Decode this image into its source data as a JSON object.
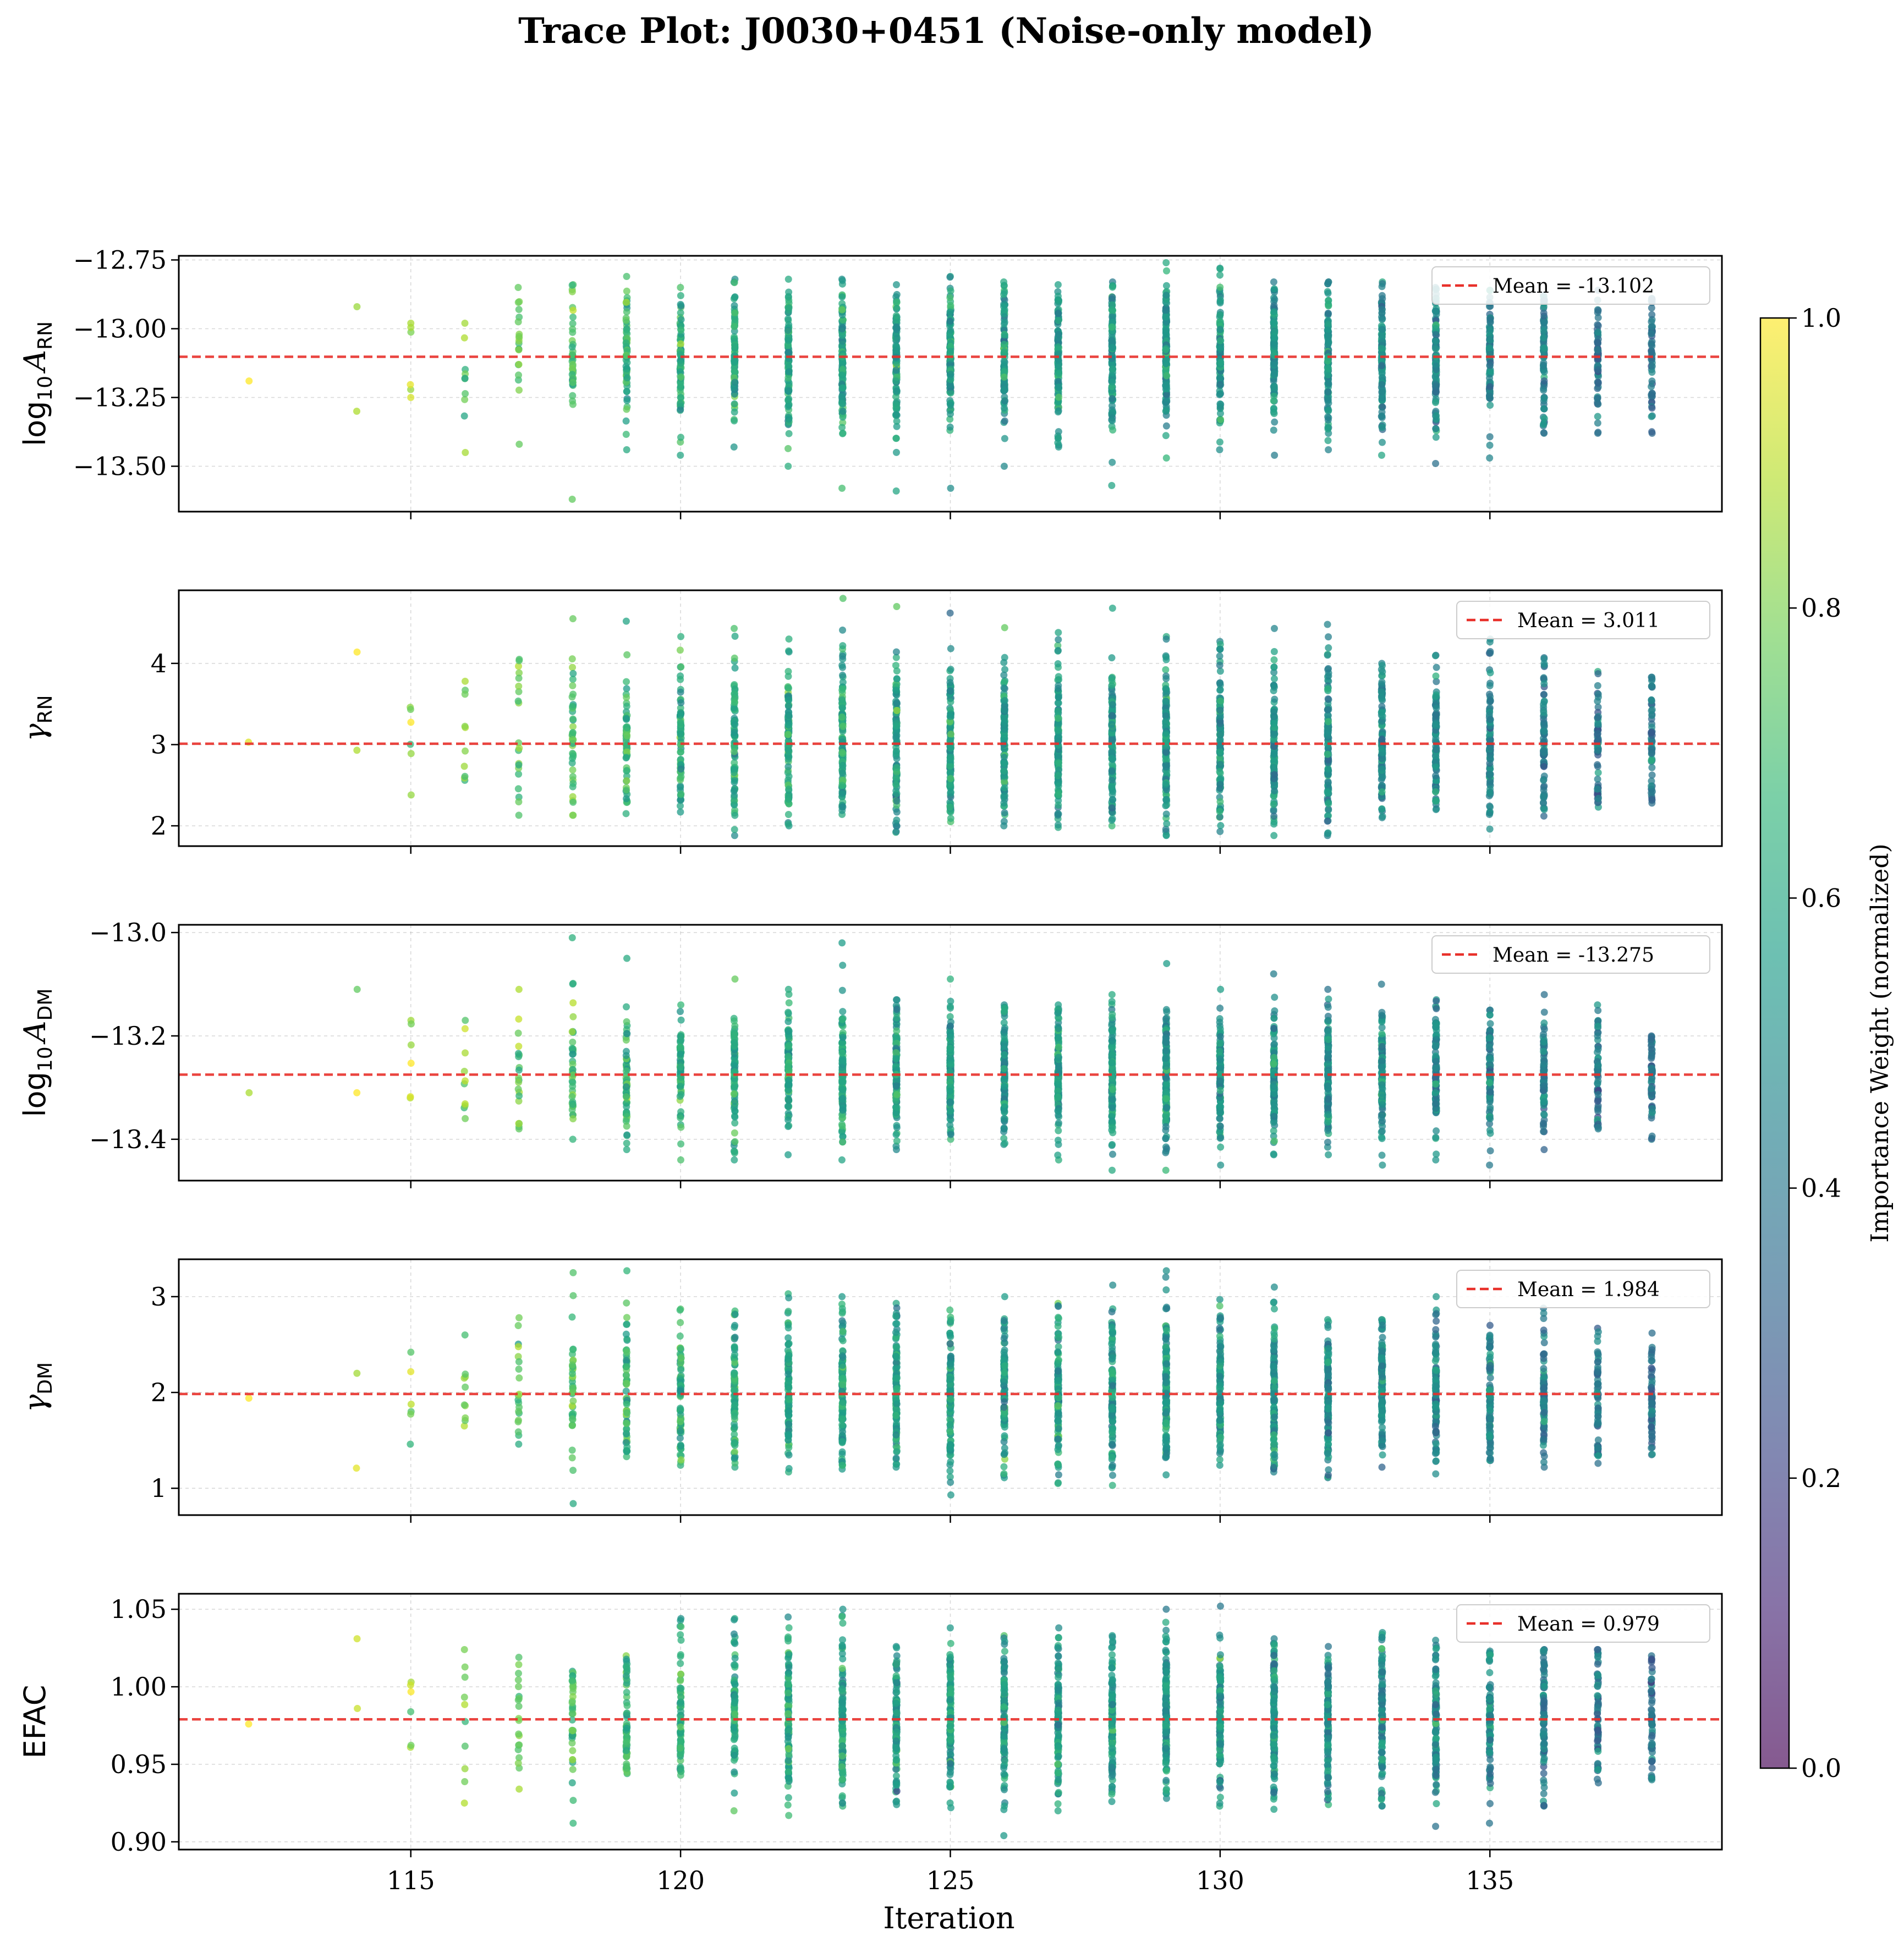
{
  "chart_data": {
    "type": "scatter",
    "title": "Trace Plot: J0030+0451 (Noise-only model)",
    "xlabel": "Iteration",
    "xlim": [
      110.7,
      139.3
    ],
    "xticks": [
      115,
      120,
      125,
      130,
      135
    ],
    "colorbar": {
      "label": "Importance Weight (normalized)",
      "range": [
        0.0,
        1.0
      ],
      "ticks": [
        "0.0",
        "0.2",
        "0.4",
        "0.6",
        "0.8",
        "1.0"
      ],
      "colormap": "viridis",
      "alpha": 0.65
    },
    "iterations": [
      112,
      114,
      115,
      116,
      117,
      118,
      119,
      120,
      121,
      122,
      123,
      124,
      125,
      126,
      127,
      128,
      129,
      130,
      131,
      132,
      133,
      134,
      135,
      136,
      137,
      138
    ],
    "points_per_iteration": [
      1,
      2,
      6,
      10,
      20,
      40,
      60,
      70,
      80,
      100,
      120,
      110,
      120,
      110,
      120,
      115,
      140,
      115,
      120,
      110,
      110,
      100,
      90,
      80,
      60,
      55
    ],
    "mean_weight_per_iteration": [
      0.98,
      0.93,
      0.85,
      0.78,
      0.74,
      0.7,
      0.66,
      0.63,
      0.61,
      0.6,
      0.59,
      0.56,
      0.56,
      0.55,
      0.55,
      0.54,
      0.54,
      0.52,
      0.51,
      0.5,
      0.49,
      0.47,
      0.46,
      0.43,
      0.41,
      0.38
    ],
    "panels": [
      {
        "ylabel_main": "log",
        "ylabel_sub": "10",
        "ylabel_var": "A",
        "ylabel_var_sub": "RN",
        "ylim": [
          -13.665,
          -12.735
        ],
        "yticks": [
          -13.5,
          -13.25,
          -13.0,
          -12.75
        ],
        "ytick_labels": [
          "−13.50",
          "−13.25",
          "−13.00",
          "−12.75"
        ],
        "mean": -13.102,
        "legend": "Mean = -13.102",
        "spread_sd": 0.13,
        "range_per_iteration": [
          [
            -13.19,
            -13.19
          ],
          [
            -13.3,
            -12.92
          ],
          [
            -13.25,
            -12.98
          ],
          [
            -13.45,
            -12.98
          ],
          [
            -13.42,
            -12.85
          ],
          [
            -13.62,
            -12.84
          ],
          [
            -13.44,
            -12.81
          ],
          [
            -13.46,
            -12.85
          ],
          [
            -13.43,
            -12.82
          ],
          [
            -13.5,
            -12.82
          ],
          [
            -13.58,
            -12.82
          ],
          [
            -13.59,
            -12.84
          ],
          [
            -13.58,
            -12.81
          ],
          [
            -13.5,
            -12.83
          ],
          [
            -13.43,
            -12.84
          ],
          [
            -13.57,
            -12.83
          ],
          [
            -13.47,
            -12.76
          ],
          [
            -13.44,
            -12.78
          ],
          [
            -13.46,
            -12.83
          ],
          [
            -13.44,
            -12.83
          ],
          [
            -13.46,
            -12.83
          ],
          [
            -13.49,
            -12.85
          ],
          [
            -13.47,
            -12.86
          ],
          [
            -13.38,
            -12.88
          ],
          [
            -13.38,
            -12.86
          ],
          [
            -13.38,
            -12.89
          ]
        ]
      },
      {
        "ylabel_main": "γ",
        "ylabel_sub": "RN",
        "ylim": [
          1.75,
          4.9
        ],
        "yticks": [
          2,
          3,
          4
        ],
        "ytick_labels": [
          "2",
          "3",
          "4"
        ],
        "mean": 3.011,
        "legend": "Mean = 3.011",
        "spread_sd": 0.5,
        "range_per_iteration": [
          [
            3.03,
            3.03
          ],
          [
            2.93,
            4.14
          ],
          [
            2.38,
            3.46
          ],
          [
            2.56,
            3.78
          ],
          [
            2.13,
            4.05
          ],
          [
            2.13,
            4.55
          ],
          [
            2.15,
            4.52
          ],
          [
            2.17,
            4.33
          ],
          [
            1.88,
            4.43
          ],
          [
            2.0,
            4.3
          ],
          [
            2.14,
            4.8
          ],
          [
            1.92,
            4.7
          ],
          [
            2.05,
            4.62
          ],
          [
            2.0,
            4.44
          ],
          [
            1.98,
            4.38
          ],
          [
            2.0,
            4.68
          ],
          [
            1.88,
            4.33
          ],
          [
            1.93,
            4.27
          ],
          [
            1.88,
            4.43
          ],
          [
            1.88,
            4.48
          ],
          [
            2.1,
            4.0
          ],
          [
            2.2,
            4.1
          ],
          [
            1.96,
            4.3
          ],
          [
            2.12,
            4.07
          ],
          [
            2.23,
            3.9
          ],
          [
            2.28,
            3.83
          ]
        ]
      },
      {
        "ylabel_main": "log",
        "ylabel_sub": "10",
        "ylabel_var": "A",
        "ylabel_var_sub": "DM",
        "ylim": [
          -13.48,
          -12.985
        ],
        "yticks": [
          -13.4,
          -13.2,
          -13.0
        ],
        "ytick_labels": [
          "−13.4",
          "−13.2",
          "−13.0"
        ],
        "mean": -13.275,
        "legend": "Mean = -13.275",
        "spread_sd": 0.06,
        "range_per_iteration": [
          [
            -13.31,
            -13.31
          ],
          [
            -13.31,
            -13.11
          ],
          [
            -13.32,
            -13.17
          ],
          [
            -13.36,
            -13.17
          ],
          [
            -13.38,
            -13.11
          ],
          [
            -13.4,
            -13.01
          ],
          [
            -13.42,
            -13.05
          ],
          [
            -13.44,
            -13.14
          ],
          [
            -13.44,
            -13.09
          ],
          [
            -13.43,
            -13.11
          ],
          [
            -13.44,
            -13.02
          ],
          [
            -13.42,
            -13.13
          ],
          [
            -13.4,
            -13.09
          ],
          [
            -13.41,
            -13.14
          ],
          [
            -13.44,
            -13.14
          ],
          [
            -13.46,
            -13.12
          ],
          [
            -13.46,
            -13.06
          ],
          [
            -13.45,
            -13.11
          ],
          [
            -13.43,
            -13.08
          ],
          [
            -13.43,
            -13.11
          ],
          [
            -13.45,
            -13.1
          ],
          [
            -13.44,
            -13.13
          ],
          [
            -13.45,
            -13.15
          ],
          [
            -13.42,
            -13.12
          ],
          [
            -13.38,
            -13.14
          ],
          [
            -13.4,
            -13.2
          ]
        ]
      },
      {
        "ylabel_main": "γ",
        "ylabel_sub": "DM",
        "ylim": [
          0.72,
          3.39
        ],
        "yticks": [
          1,
          2,
          3
        ],
        "ytick_labels": [
          "1",
          "2",
          "3"
        ],
        "mean": 1.984,
        "legend": "Mean = 1.984",
        "spread_sd": 0.4,
        "range_per_iteration": [
          [
            1.94,
            1.94
          ],
          [
            1.21,
            2.2
          ],
          [
            1.46,
            2.42
          ],
          [
            1.65,
            2.6
          ],
          [
            1.46,
            2.78
          ],
          [
            0.84,
            3.25
          ],
          [
            1.33,
            3.27
          ],
          [
            1.24,
            2.87
          ],
          [
            1.22,
            2.85
          ],
          [
            1.17,
            3.03
          ],
          [
            1.2,
            3.0
          ],
          [
            1.22,
            2.93
          ],
          [
            0.93,
            2.86
          ],
          [
            1.11,
            3.0
          ],
          [
            1.05,
            2.93
          ],
          [
            1.03,
            3.12
          ],
          [
            1.14,
            3.27
          ],
          [
            1.24,
            2.97
          ],
          [
            1.17,
            3.1
          ],
          [
            1.11,
            2.76
          ],
          [
            1.22,
            2.76
          ],
          [
            1.15,
            3.0
          ],
          [
            1.29,
            2.7
          ],
          [
            1.22,
            2.88
          ],
          [
            1.26,
            2.67
          ],
          [
            1.35,
            2.62
          ]
        ]
      },
      {
        "ylabel_main": "EFAC",
        "ylim": [
          0.895,
          1.06
        ],
        "yticks": [
          0.9,
          0.95,
          1.0,
          1.05
        ],
        "ytick_labels": [
          "0.90",
          "0.95",
          "1.00",
          "1.05"
        ],
        "mean": 0.979,
        "legend": "Mean = 0.979",
        "spread_sd": 0.025,
        "range_per_iteration": [
          [
            0.976,
            0.976
          ],
          [
            0.986,
            1.031
          ],
          [
            0.961,
            1.003
          ],
          [
            0.925,
            1.024
          ],
          [
            0.934,
            1.019
          ],
          [
            0.912,
            1.01
          ],
          [
            0.944,
            1.02
          ],
          [
            0.943,
            1.044
          ],
          [
            0.92,
            1.044
          ],
          [
            0.917,
            1.045
          ],
          [
            0.923,
            1.05
          ],
          [
            0.924,
            1.026
          ],
          [
            0.922,
            1.038
          ],
          [
            0.904,
            1.033
          ],
          [
            0.92,
            1.038
          ],
          [
            0.926,
            1.033
          ],
          [
            0.928,
            1.05
          ],
          [
            0.923,
            1.052
          ],
          [
            0.921,
            1.031
          ],
          [
            0.924,
            1.026
          ],
          [
            0.923,
            1.035
          ],
          [
            0.91,
            1.03
          ],
          [
            0.912,
            1.023
          ],
          [
            0.923,
            1.024
          ],
          [
            0.938,
            1.024
          ],
          [
            0.94,
            1.02
          ]
        ]
      }
    ]
  }
}
